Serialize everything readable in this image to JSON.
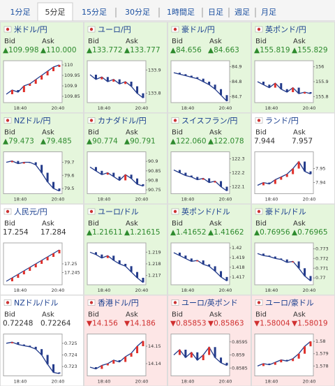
{
  "tabs": [
    "1分足",
    "5分足",
    "15分足",
    "30分足",
    "1時間足",
    "日足",
    "週足",
    "月足"
  ],
  "selected_tab": 1,
  "bid_label": "Bid",
  "ask_label": "Ask",
  "time_labels": [
    "18:40",
    "20:40"
  ],
  "chart_data": [
    {
      "type": "line",
      "title": "米ドル/円",
      "bid": "▲109.998",
      "ask": "▲110.000",
      "background": "#e5f6dc",
      "text_color": "#2e8b2e",
      "ylim": [
        109.82,
        110.02
      ],
      "yticks": [
        110,
        109.95,
        109.9,
        109.85
      ],
      "values": [
        109.86,
        109.88,
        109.87,
        109.9,
        109.91,
        109.93,
        109.95,
        109.97,
        109.99,
        110.0
      ]
    },
    {
      "type": "line",
      "title": "ユーロ/円",
      "bid": "▲133.772",
      "ask": "▲133.777",
      "background": "#e5f6dc",
      "text_color": "#2e8b2e",
      "ylim": [
        133.76,
        133.94
      ],
      "yticks": [
        133.9,
        133.8
      ],
      "values": [
        133.88,
        133.86,
        133.87,
        133.85,
        133.86,
        133.84,
        133.85,
        133.83,
        133.8,
        133.78
      ]
    },
    {
      "type": "line",
      "title": "豪ドル/円",
      "bid": "▲84.656",
      "ask": "▲84.663",
      "background": "#e5f6dc",
      "text_color": "#2e8b2e",
      "ylim": [
        84.66,
        84.94
      ],
      "yticks": [
        84.9,
        84.8,
        84.7
      ],
      "values": [
        84.86,
        84.85,
        84.84,
        84.83,
        84.82,
        84.8,
        84.78,
        84.75,
        84.71,
        84.67
      ]
    },
    {
      "type": "line",
      "title": "英ポンド/円",
      "bid": "▲155.819",
      "ask": "▲155.829",
      "background": "#e5f6dc",
      "text_color": "#2e8b2e",
      "ylim": [
        155.76,
        156.04
      ],
      "yticks": [
        156,
        155.9,
        155.8
      ],
      "values": [
        155.9,
        155.88,
        155.86,
        155.89,
        155.85,
        155.83,
        155.86,
        155.82,
        155.83,
        155.82
      ]
    },
    {
      "type": "line",
      "title": "NZドル/円",
      "bid": "▲79.473",
      "ask": "▲79.485",
      "background": "#e5f6dc",
      "text_color": "#2e8b2e",
      "ylim": [
        79.46,
        79.78
      ],
      "yticks": [
        79.7,
        79.6,
        79.5
      ],
      "values": [
        79.7,
        79.71,
        79.69,
        79.7,
        79.7,
        79.68,
        79.62,
        79.55,
        79.5,
        79.48
      ]
    },
    {
      "type": "line",
      "title": "カナダドル/円",
      "bid": "▲90.774",
      "ask": "▲90.791",
      "background": "#e5f6dc",
      "text_color": "#2e8b2e",
      "ylim": [
        90.73,
        90.95
      ],
      "yticks": [
        90.9,
        90.85,
        90.8,
        90.75
      ],
      "values": [
        90.87,
        90.85,
        90.83,
        90.84,
        90.82,
        90.8,
        90.83,
        90.81,
        90.78,
        90.77
      ]
    },
    {
      "type": "line",
      "title": "スイスフラン/円",
      "bid": "▲122.060",
      "ask": "▲122.078",
      "background": "#e5f6dc",
      "text_color": "#2e8b2e",
      "ylim": [
        122.05,
        122.35
      ],
      "yticks": [
        122.3,
        122.2,
        122.1
      ],
      "values": [
        122.22,
        122.2,
        122.18,
        122.17,
        122.15,
        122.16,
        122.13,
        122.14,
        122.1,
        122.07
      ]
    },
    {
      "type": "line",
      "title": "ランド/円",
      "bid": "7.944",
      "ask": "7.957",
      "background": "#ffffff",
      "text_color": "#333333",
      "ylim": [
        7.932,
        7.962
      ],
      "yticks": [
        7.95,
        7.94
      ],
      "values": [
        7.938,
        7.94,
        7.939,
        7.942,
        7.944,
        7.946,
        7.95,
        7.955,
        7.948,
        7.946
      ]
    },
    {
      "type": "line",
      "title": "人民元/円",
      "bid": "17.254",
      "ask": "17.284",
      "background": "#ffffff",
      "text_color": "#333333",
      "ylim": [
        17.238,
        17.262
      ],
      "yticks": [
        17.25,
        17.245
      ],
      "values": [
        17.24,
        17.242,
        17.244,
        17.246,
        17.248,
        17.25,
        17.252,
        17.254,
        17.256,
        17.258
      ]
    },
    {
      "type": "line",
      "title": "ユーロ/ドル",
      "bid": "▲1.21611",
      "ask": "▲1.21615",
      "background": "#e5f6dc",
      "text_color": "#2e8b2e",
      "ylim": [
        1.2162,
        1.2198
      ],
      "yticks": [
        1.219,
        1.218,
        1.217
      ],
      "values": [
        1.219,
        1.2188,
        1.2185,
        1.2187,
        1.2183,
        1.218,
        1.2178,
        1.2173,
        1.2168,
        1.2164
      ]
    },
    {
      "type": "line",
      "title": "英ポンド/ドル",
      "bid": "▲1.41652",
      "ask": "▲1.41662",
      "background": "#e5f6dc",
      "text_color": "#2e8b2e",
      "ylim": [
        1.4162,
        1.4205
      ],
      "yticks": [
        1.42,
        1.419,
        1.418,
        1.417
      ],
      "values": [
        1.4195,
        1.4192,
        1.4189,
        1.4186,
        1.4187,
        1.4183,
        1.4181,
        1.4176,
        1.417,
        1.4166
      ]
    },
    {
      "type": "line",
      "title": "豪ドル/ドル",
      "bid": "▲0.76956",
      "ask": "▲0.76965",
      "background": "#e5f6dc",
      "text_color": "#2e8b2e",
      "ylim": [
        0.7693,
        0.7736
      ],
      "yticks": [
        0.773,
        0.772,
        0.771,
        0.77
      ],
      "values": [
        0.7725,
        0.7723,
        0.7722,
        0.772,
        0.7719,
        0.7716,
        0.7717,
        0.771,
        0.7702,
        0.7697
      ]
    },
    {
      "type": "line",
      "title": "NZドル/ドル",
      "bid": "0.72248",
      "ask": "0.72264",
      "background": "#ffffff",
      "text_color": "#333333",
      "ylim": [
        0.7222,
        0.7258
      ],
      "yticks": [
        0.725,
        0.724,
        0.723
      ],
      "values": [
        0.725,
        0.7251,
        0.7249,
        0.7248,
        0.7247,
        0.7245,
        0.724,
        0.7232,
        0.7225,
        0.7224
      ]
    },
    {
      "type": "line",
      "title": "香港ドル/円",
      "bid": "▼14.156",
      "ask": "▼14.186",
      "background": "#fde6e6",
      "text_color": "#d03030",
      "ylim": [
        14.133,
        14.157
      ],
      "yticks": [
        14.15,
        14.14
      ],
      "values": [
        14.138,
        14.137,
        14.139,
        14.14,
        14.142,
        14.141,
        14.144,
        14.146,
        14.15,
        14.153
      ]
    },
    {
      "type": "line",
      "title": "ユーロ/英ポンド",
      "bid": "▼0.85853",
      "ask": "▼0.85863",
      "background": "#fde6e6",
      "text_color": "#d03030",
      "ylim": [
        0.8582,
        0.8598
      ],
      "yticks": [
        0.8595,
        0.859,
        0.8585
      ],
      "values": [
        0.859,
        0.8592,
        0.8589,
        0.8591,
        0.8588,
        0.859,
        0.8593,
        0.8589,
        0.8587,
        0.8586
      ]
    },
    {
      "type": "line",
      "title": "ユーロ/豪ドル",
      "bid": "▼1.58004",
      "ask": "▼1.58019",
      "background": "#fde6e6",
      "text_color": "#d03030",
      "ylim": [
        1.5772,
        1.5806
      ],
      "yticks": [
        1.58,
        1.579,
        1.578
      ],
      "values": [
        1.578,
        1.5782,
        1.5781,
        1.5783,
        1.5785,
        1.5784,
        1.5786,
        1.579,
        1.5796,
        1.58
      ]
    }
  ]
}
